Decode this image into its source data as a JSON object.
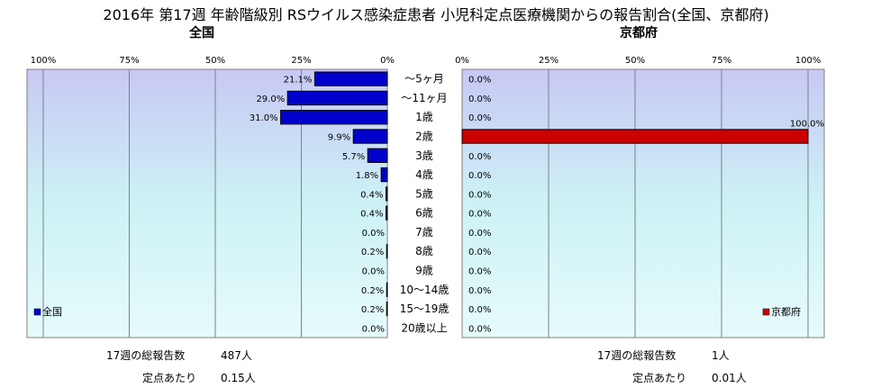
{
  "title": "2016年 第17週 年齢階級別 RSウイルス感染症患者 小児科定点医療機関からの報告割合(全国、京都府)",
  "chart_data": [
    {
      "type": "bar",
      "orientation": "horizontal",
      "title": "全国",
      "categories": [
        "～5ヶ月",
        "～11ヶ月",
        "1歳",
        "2歳",
        "3歳",
        "4歳",
        "5歳",
        "6歳",
        "7歳",
        "8歳",
        "9歳",
        "10～14歳",
        "15～19歳",
        "20歳以上"
      ],
      "series": [
        {
          "name": "全国",
          "values": [
            21.1,
            29.0,
            31.0,
            9.9,
            5.7,
            1.8,
            0.4,
            0.4,
            0.0,
            0.2,
            0.0,
            0.2,
            0.2,
            0.0
          ],
          "color": "#0000cc"
        }
      ],
      "xlim": [
        0,
        100
      ],
      "xticks": [
        "100%",
        "75%",
        "50%",
        "25%",
        "0%"
      ],
      "direction": "reversed",
      "legend": "bottom-left",
      "grid": true
    },
    {
      "type": "bar",
      "orientation": "horizontal",
      "title": "京都府",
      "categories": [
        "～5ヶ月",
        "～11ヶ月",
        "1歳",
        "2歳",
        "3歳",
        "4歳",
        "5歳",
        "6歳",
        "7歳",
        "8歳",
        "9歳",
        "10～14歳",
        "15～19歳",
        "20歳以上"
      ],
      "series": [
        {
          "name": "京都府",
          "values": [
            0.0,
            0.0,
            0.0,
            100.0,
            0.0,
            0.0,
            0.0,
            0.0,
            0.0,
            0.0,
            0.0,
            0.0,
            0.0,
            0.0
          ],
          "color": "#cc0000"
        }
      ],
      "xlim": [
        0,
        100
      ],
      "xticks": [
        "0%",
        "25%",
        "50%",
        "75%",
        "100%"
      ],
      "direction": "normal",
      "legend": "bottom-right",
      "grid": true
    }
  ],
  "footer": {
    "left_total_label": "17週の総報告数",
    "left_total_value": "487人",
    "left_per_label": "定点あたり",
    "left_per_value": "0.15人",
    "right_total_label": "17週の総報告数",
    "right_total_value": "1人",
    "right_per_label": "定点あたり",
    "right_per_value": "0.01人"
  }
}
